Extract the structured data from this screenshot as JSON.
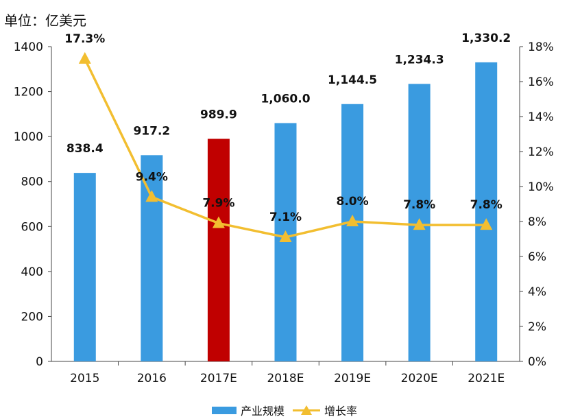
{
  "unit_label": "单位：亿美元",
  "colors": {
    "bar": "#3a9be0",
    "bar_highlight": "#c00000",
    "line": "#f2be30"
  },
  "chart_data": {
    "type": "bar",
    "categories": [
      "2015",
      "2016",
      "2017E",
      "2018E",
      "2019E",
      "2020E",
      "2021E"
    ],
    "highlight_category": "2017E",
    "y_left": {
      "lim": [
        0,
        1400
      ],
      "ticks": [
        0,
        200,
        400,
        600,
        800,
        1000,
        1200,
        1400
      ]
    },
    "y_right": {
      "lim": [
        0,
        18
      ],
      "ticks": [
        "0%",
        "2%",
        "4%",
        "6%",
        "8%",
        "10%",
        "12%",
        "14%",
        "16%",
        "18%"
      ]
    },
    "series": [
      {
        "name": "产业规模",
        "type": "bar",
        "axis": "left",
        "values": [
          838.4,
          917.2,
          989.9,
          1060.0,
          1144.5,
          1234.3,
          1330.2
        ],
        "labels": [
          "838.4",
          "917.2",
          "989.9",
          "1,060.0",
          "1,144.5",
          "1,234.3",
          "1,330.2"
        ]
      },
      {
        "name": "增长率",
        "type": "line",
        "axis": "right",
        "marker": "triangle",
        "values": [
          17.3,
          9.4,
          7.9,
          7.1,
          8.0,
          7.8,
          7.8
        ],
        "labels": [
          "17.3%",
          "9.4%",
          "7.9%",
          "7.1%",
          "8.0%",
          "7.8%",
          "7.8%"
        ]
      }
    ],
    "legend": {
      "position": "bottom",
      "items": [
        "产业规模",
        "增长率"
      ]
    }
  }
}
